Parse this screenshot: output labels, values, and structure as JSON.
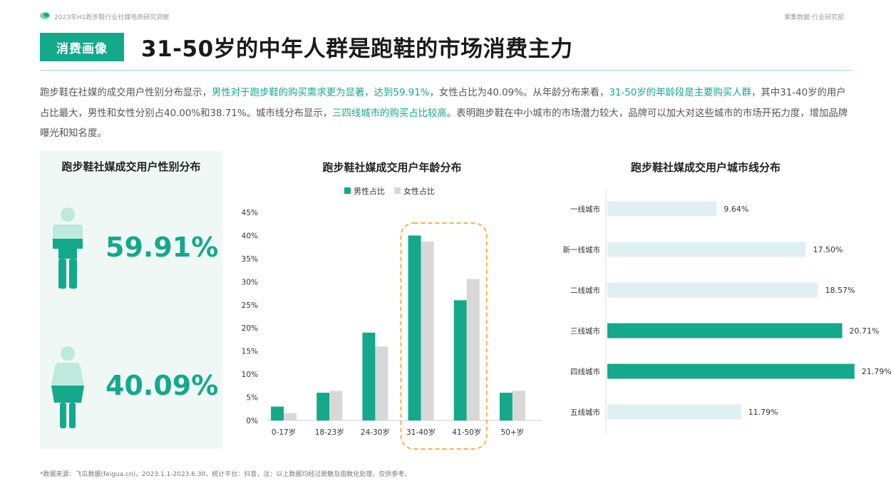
{
  "header": {
    "report_title": "2023年H1跑步鞋行业社媒电商研究洞察",
    "brand": "果集数据·行业研究部",
    "tag": "消费画像",
    "title": "31-50岁的中年人群是跑鞋的市场消费主力"
  },
  "description": {
    "p1": "跑步鞋在社媒的成交用户性别分布显示，",
    "h1": "男性对于跑步鞋的购买需求更为显著，达到59.91%",
    "p2": "，女性占比为40.09%。从年龄分布来看，",
    "h2": "31-50岁的年龄段是主要购买人群",
    "p3": "，其中31-40岁的用户占比最大，男性和女性分别占40.00%和38.71%。城市线分布显示，",
    "h3": "三四线城市的购买占比较高",
    "p4": "。表明跑步鞋在中小城市的市场潜力较大，品牌可以加大对这些城市的市场开拓力度，增加品牌曝光和知名度。"
  },
  "colors": {
    "accent": "#14a98b",
    "light_bar": "#dff0f2",
    "gray_bar": "#d8d8d8",
    "highlight_border": "#f5b34a",
    "panel_bg": "#f0f8f6"
  },
  "gender_panel": {
    "title": "跑步鞋社媒成交用户性别分布",
    "male_pct": "59.91%",
    "female_pct": "40.09%",
    "male_icon": "male-person-icon",
    "female_icon": "female-person-icon"
  },
  "chart_data": [
    {
      "type": "bar",
      "title": "跑步鞋社媒成交用户年龄分布",
      "categories": [
        "0-17岁",
        "18-23岁",
        "24-30岁",
        "31-40岁",
        "41-50岁",
        "50+岁"
      ],
      "series": [
        {
          "name": "男性占比",
          "values": [
            3.0,
            6.0,
            19.0,
            40.0,
            26.0,
            6.0
          ],
          "color": "#14a98b"
        },
        {
          "name": "女性占比",
          "values": [
            1.6,
            6.4,
            16.0,
            38.71,
            30.6,
            6.4
          ],
          "color": "#d8d8d8"
        }
      ],
      "ylim": [
        0,
        45
      ],
      "yticks": [
        "0%",
        "5%",
        "10%",
        "15%",
        "20%",
        "25%",
        "30%",
        "35%",
        "40%",
        "45%"
      ],
      "legend": "top",
      "highlight_categories": [
        "31-40岁",
        "41-50岁"
      ]
    },
    {
      "type": "bar",
      "orientation": "horizontal",
      "title": "跑步鞋社媒成交用户城市线分布",
      "categories": [
        "一线城市",
        "新一线城市",
        "二线城市",
        "三线城市",
        "四线城市",
        "五线城市"
      ],
      "values": [
        9.64,
        17.5,
        18.57,
        20.71,
        21.79,
        11.79
      ],
      "labels": [
        "9.64%",
        "17.50%",
        "18.57%",
        "20.71%",
        "21.79%",
        "11.79%"
      ],
      "highlight": [
        false,
        false,
        false,
        true,
        true,
        false
      ],
      "xlim": [
        0,
        23
      ]
    }
  ],
  "footer": "*数据来源：飞瓜数据(feigua.cn)，2023.1.1-2023.6.30，统计平台：抖音，注：以上数据均经过脱敏及指数化处理，仅供参考。"
}
